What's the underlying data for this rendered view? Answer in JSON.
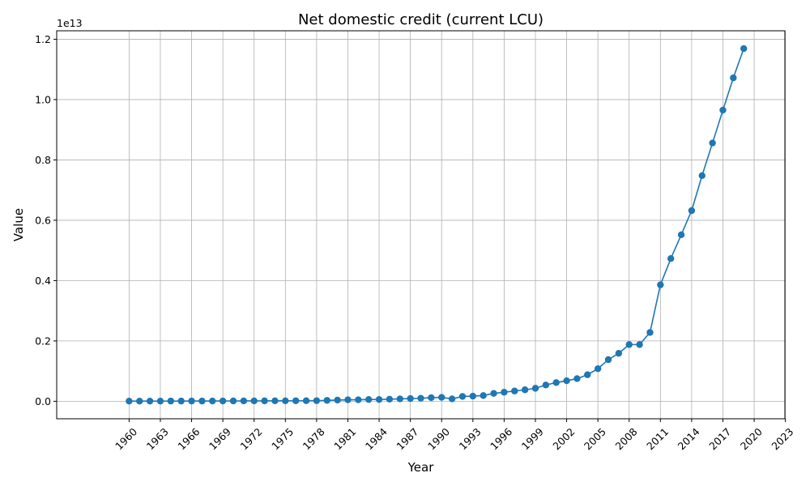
{
  "chart_data": {
    "type": "line",
    "title": "Net domestic credit (current LCU)",
    "xlabel": "Year",
    "ylabel": "Value",
    "y_offset_label": "1e13",
    "xlim": [
      1953.05,
      2022.95
    ],
    "ylim": [
      -0.058,
      1.228
    ],
    "y_unit_multiplier": 10000000000000.0,
    "grid": true,
    "color": "#1f77b4",
    "x_ticks": [
      1960,
      1963,
      1966,
      1969,
      1972,
      1975,
      1978,
      1981,
      1984,
      1987,
      1990,
      1993,
      1996,
      1999,
      2002,
      2005,
      2008,
      2011,
      2014,
      2017,
      2020,
      2023
    ],
    "y_ticks": [
      0.0,
      0.2,
      0.4,
      0.6,
      0.8,
      1.0,
      1.2
    ],
    "y_tick_labels": [
      "0.0",
      "0.2",
      "0.4",
      "0.6",
      "0.8",
      "1.0",
      "1.2"
    ],
    "x": [
      1960,
      1961,
      1962,
      1963,
      1964,
      1965,
      1966,
      1967,
      1968,
      1969,
      1970,
      1971,
      1972,
      1973,
      1974,
      1975,
      1976,
      1977,
      1978,
      1979,
      1980,
      1981,
      1982,
      1983,
      1984,
      1985,
      1986,
      1987,
      1988,
      1989,
      1990,
      1991,
      1992,
      1993,
      1994,
      1995,
      1996,
      1997,
      1998,
      1999,
      2000,
      2001,
      2002,
      2003,
      2004,
      2005,
      2006,
      2007,
      2008,
      2009,
      2010,
      2011,
      2012,
      2013,
      2014,
      2015,
      2016,
      2017,
      2018,
      2019
    ],
    "series": [
      {
        "values": [
          0.0005,
          0.0005,
          0.0006,
          0.0006,
          0.0007,
          0.0007,
          0.0008,
          0.0008,
          0.0009,
          0.001,
          0.0011,
          0.0012,
          0.0013,
          0.0014,
          0.0015,
          0.0016,
          0.0017,
          0.0019,
          0.002,
          0.003,
          0.004,
          0.005,
          0.005,
          0.006,
          0.006,
          0.007,
          0.008,
          0.009,
          0.01,
          0.012,
          0.013,
          0.008,
          0.016,
          0.017,
          0.019,
          0.026,
          0.03,
          0.034,
          0.038,
          0.043,
          0.054,
          0.062,
          0.068,
          0.075,
          0.088,
          0.108,
          0.138,
          0.159,
          0.188,
          0.188,
          0.228,
          0.386,
          0.473,
          0.552,
          0.632,
          0.748,
          0.856,
          0.965,
          1.072,
          1.169
        ]
      }
    ]
  }
}
